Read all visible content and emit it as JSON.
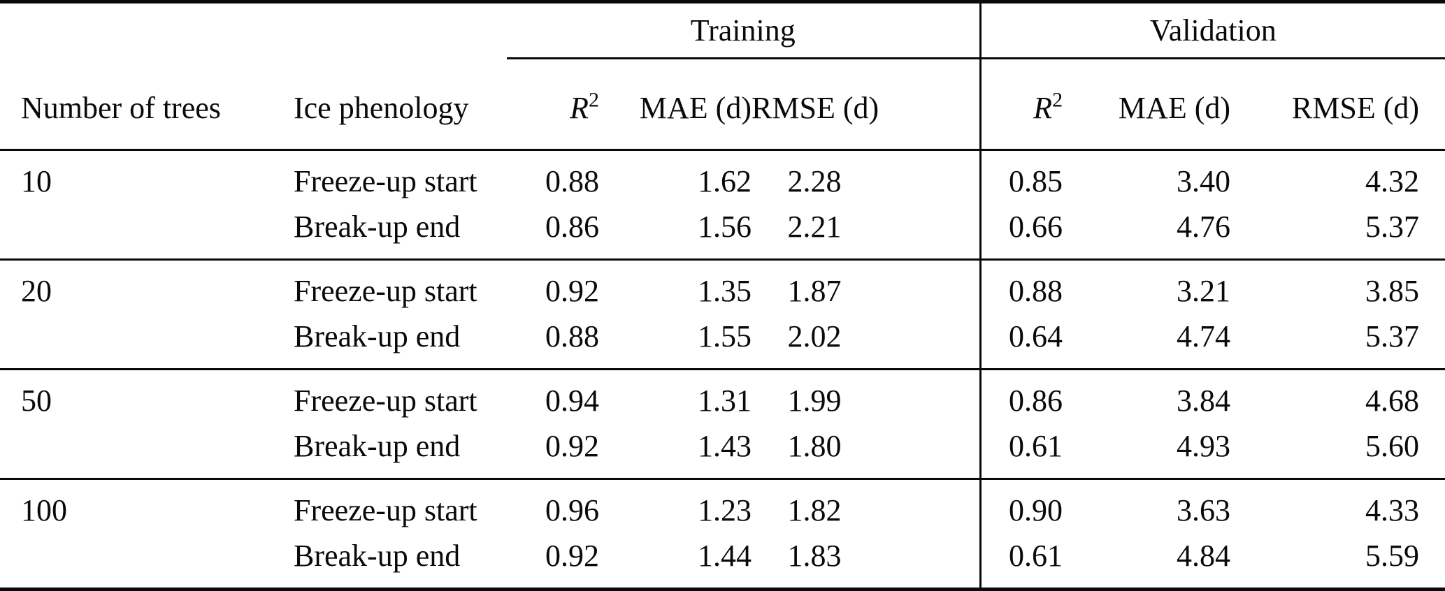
{
  "table": {
    "group_headers": {
      "training": "Training",
      "validation": "Validation"
    },
    "col_headers": {
      "number_of_trees": "Number of trees",
      "ice_phenology": "Ice phenology",
      "r2": {
        "base": "R",
        "sup": "2"
      },
      "mae": "MAE (d)",
      "rmse": "RMSE (d)"
    },
    "groups": [
      {
        "trees": "10",
        "rows": [
          {
            "phenology": "Freeze-up start",
            "train": {
              "r2": "0.88",
              "mae": "1.62",
              "rmse": "2.28"
            },
            "val": {
              "r2": "0.85",
              "mae": "3.40",
              "rmse": "4.32"
            }
          },
          {
            "phenology": "Break-up end",
            "train": {
              "r2": "0.86",
              "mae": "1.56",
              "rmse": "2.21"
            },
            "val": {
              "r2": "0.66",
              "mae": "4.76",
              "rmse": "5.37"
            }
          }
        ]
      },
      {
        "trees": "20",
        "rows": [
          {
            "phenology": "Freeze-up start",
            "train": {
              "r2": "0.92",
              "mae": "1.35",
              "rmse": "1.87"
            },
            "val": {
              "r2": "0.88",
              "mae": "3.21",
              "rmse": "3.85"
            }
          },
          {
            "phenology": "Break-up end",
            "train": {
              "r2": "0.88",
              "mae": "1.55",
              "rmse": "2.02"
            },
            "val": {
              "r2": "0.64",
              "mae": "4.74",
              "rmse": "5.37"
            }
          }
        ]
      },
      {
        "trees": "50",
        "rows": [
          {
            "phenology": "Freeze-up start",
            "train": {
              "r2": "0.94",
              "mae": "1.31",
              "rmse": "1.99"
            },
            "val": {
              "r2": "0.86",
              "mae": "3.84",
              "rmse": "4.68"
            }
          },
          {
            "phenology": "Break-up end",
            "train": {
              "r2": "0.92",
              "mae": "1.43",
              "rmse": "1.80"
            },
            "val": {
              "r2": "0.61",
              "mae": "4.93",
              "rmse": "5.60"
            }
          }
        ]
      },
      {
        "trees": "100",
        "rows": [
          {
            "phenology": "Freeze-up start",
            "train": {
              "r2": "0.96",
              "mae": "1.23",
              "rmse": "1.82"
            },
            "val": {
              "r2": "0.90",
              "mae": "3.63",
              "rmse": "4.33"
            }
          },
          {
            "phenology": "Break-up end",
            "train": {
              "r2": "0.92",
              "mae": "1.44",
              "rmse": "1.83"
            },
            "val": {
              "r2": "0.61",
              "mae": "4.84",
              "rmse": "5.59"
            }
          }
        ]
      }
    ]
  }
}
